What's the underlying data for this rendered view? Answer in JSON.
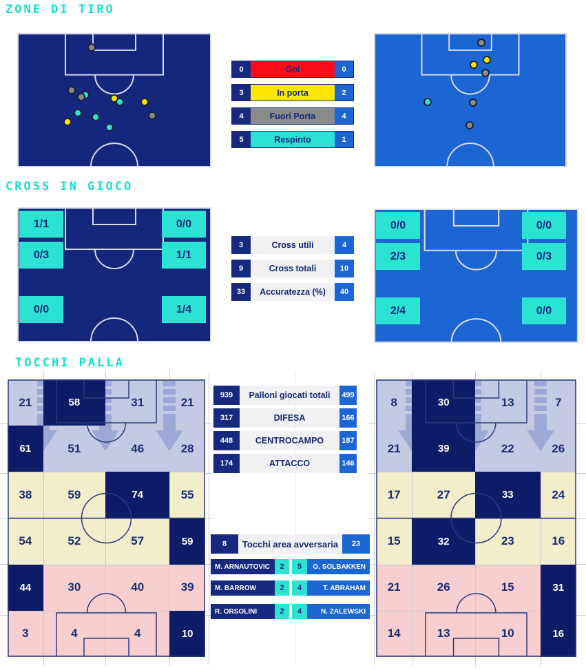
{
  "colors": {
    "title": "#12DFD2",
    "home": "#16297E",
    "home_pitch": "#15277D",
    "home_dark": "#0D1C66",
    "away": "#1C66D3",
    "turquoise": "#2BE3D3",
    "label_bg": "#F1F1F4",
    "text_navy": "#16276F",
    "goal": "#F90D1B",
    "on_target": "#FFE600",
    "off_target": "#8A8A8A",
    "blocked": "#2BE3D3",
    "zone_defense": "#C5CAE4",
    "zone_midfield": "#F2EDCB",
    "zone_attack": "#F8CFD0",
    "grid_line": "#C6C9D3",
    "arrow": "rgba(122,140,200,0.55)"
  },
  "chart_data": [
    {
      "type": "scatter",
      "title": "ZONE DI TIRO",
      "legend": [
        {
          "label": "Gol",
          "home": "0",
          "away": "0",
          "color": "#F90D1B"
        },
        {
          "label": "In porta",
          "home": "3",
          "away": "2",
          "color": "#FFE600"
        },
        {
          "label": "Fuori Porta",
          "home": "4",
          "away": "4",
          "color": "#8A8A8A"
        },
        {
          "label": "Respinto",
          "home": "5",
          "away": "1",
          "color": "#2BE3D3"
        }
      ],
      "home_shots": [
        {
          "x": 38.3,
          "y": 10.8,
          "type": "off_target"
        },
        {
          "x": 28.0,
          "y": 42.6,
          "type": "off_target"
        },
        {
          "x": 35.1,
          "y": 46.2,
          "type": "blocked"
        },
        {
          "x": 33.0,
          "y": 47.7,
          "type": "off_target"
        },
        {
          "x": 50.0,
          "y": 48.7,
          "type": "on_target"
        },
        {
          "x": 52.8,
          "y": 51.3,
          "type": "blocked"
        },
        {
          "x": 65.6,
          "y": 51.3,
          "type": "on_target"
        },
        {
          "x": 31.2,
          "y": 59.5,
          "type": "blocked"
        },
        {
          "x": 69.5,
          "y": 61.5,
          "type": "off_target"
        },
        {
          "x": 40.4,
          "y": 62.6,
          "type": "blocked"
        },
        {
          "x": 25.9,
          "y": 66.2,
          "type": "on_target"
        },
        {
          "x": 47.5,
          "y": 70.3,
          "type": "blocked"
        }
      ],
      "away_shots": [
        {
          "x": 55.7,
          "y": 7.2,
          "type": "off_target"
        },
        {
          "x": 58.6,
          "y": 20.0,
          "type": "on_target"
        },
        {
          "x": 51.8,
          "y": 23.6,
          "type": "on_target"
        },
        {
          "x": 57.9,
          "y": 29.7,
          "type": "off_target"
        },
        {
          "x": 27.9,
          "y": 51.3,
          "type": "blocked"
        },
        {
          "x": 51.4,
          "y": 51.8,
          "type": "off_target"
        },
        {
          "x": 49.6,
          "y": 68.7,
          "type": "off_target"
        }
      ]
    },
    {
      "type": "table",
      "title": "CROSS IN GIOCO",
      "rows": [
        {
          "label": "Cross utili",
          "home": "3",
          "away": "4"
        },
        {
          "label": "Cross totali",
          "home": "9",
          "away": "10"
        },
        {
          "label": "Accuratezza (%)",
          "home": "33",
          "away": "40"
        }
      ],
      "home_zones": [
        "1/1",
        "0/0",
        "0/3",
        "1/1",
        "0/0",
        "1/4"
      ],
      "away_zones": [
        "0/0",
        "0/0",
        "2/3",
        "0/3",
        "2/4",
        "0/0"
      ]
    },
    {
      "type": "heatmap",
      "title": "TOCCHI PALLA",
      "totals": [
        {
          "label": "Palloni giocati totali",
          "home": "939",
          "away": "499"
        },
        {
          "label": "DIFESA",
          "home": "317",
          "away": "166"
        },
        {
          "label": "CENTROCAMPO",
          "home": "448",
          "away": "187"
        },
        {
          "label": "ATTACCO",
          "home": "174",
          "away": "146"
        }
      ],
      "area_row": {
        "label": "Tocchi area avversaria",
        "home": "8",
        "away": "23"
      },
      "players": [
        {
          "home_name": "M. ARNAUTOVIC",
          "home": "2",
          "away": "5",
          "away_name": "O. SOLBAKKEN"
        },
        {
          "home_name": "M. BARROW",
          "home": "2",
          "away": "4",
          "away_name": "T. ABRAHAM"
        },
        {
          "home_name": "R. ORSOLINI",
          "home": "2",
          "away": "4",
          "away_name": "N. ZALEWSKI"
        }
      ],
      "home_grid": [
        [
          21,
          58,
          31,
          21
        ],
        [
          61,
          51,
          46,
          28
        ],
        [
          38,
          59,
          74,
          55
        ],
        [
          54,
          52,
          57,
          59
        ],
        [
          44,
          30,
          40,
          39
        ],
        [
          3,
          4,
          4,
          10
        ]
      ],
      "home_dark_cells": [
        [
          0,
          1
        ],
        [
          1,
          0
        ],
        [
          2,
          2
        ],
        [
          3,
          3
        ],
        [
          4,
          0
        ],
        [
          5,
          3
        ]
      ],
      "away_grid": [
        [
          8,
          30,
          13,
          7
        ],
        [
          21,
          39,
          22,
          26
        ],
        [
          17,
          27,
          33,
          24
        ],
        [
          15,
          32,
          23,
          16
        ],
        [
          21,
          26,
          15,
          31
        ],
        [
          14,
          13,
          10,
          16
        ]
      ],
      "away_dark_cells": [
        [
          0,
          1
        ],
        [
          1,
          1
        ],
        [
          2,
          2
        ],
        [
          3,
          1
        ],
        [
          4,
          3
        ],
        [
          5,
          3
        ]
      ],
      "zone_rows": [
        "defense",
        "defense",
        "midfield",
        "midfield",
        "attack",
        "attack"
      ]
    }
  ]
}
